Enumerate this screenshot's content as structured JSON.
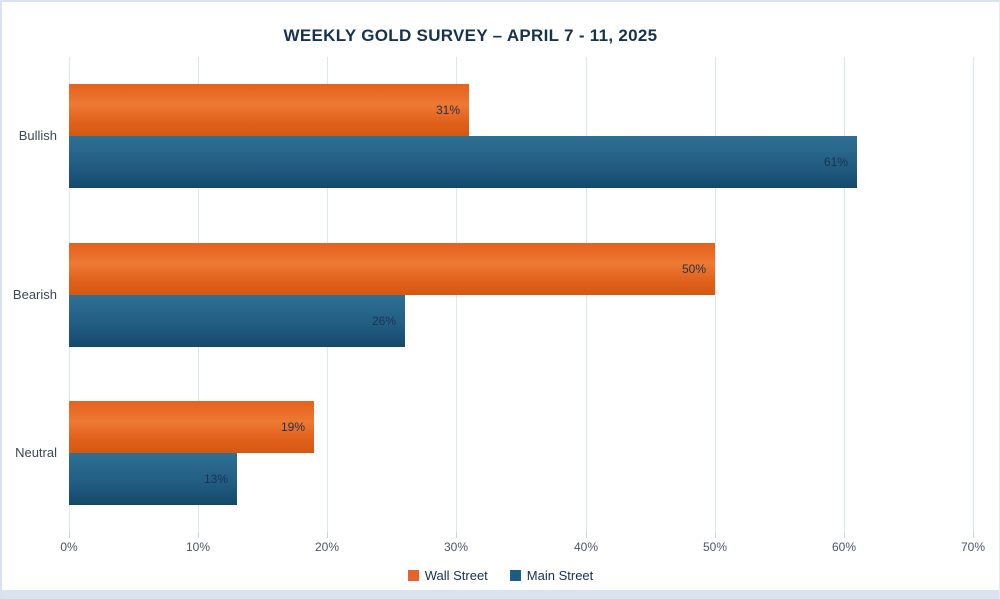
{
  "title": "WEEKLY GOLD SURVEY – APRIL 7 - 11, 2025",
  "colors": {
    "title_text": "#16324f",
    "wall_street": "#e8622b",
    "main_street": "#1d5d83",
    "gridline": "#dce6f0",
    "axis_label_text": "#4b5563",
    "category_label_text": "#3c4754",
    "value_label_text": "#1c3250",
    "card_border": "#d9e2f1"
  },
  "chart_data": {
    "type": "bar",
    "orientation": "horizontal",
    "title": "WEEKLY GOLD SURVEY – APRIL 7 - 11, 2025",
    "categories": [
      "Bullish",
      "Bearish",
      "Neutral"
    ],
    "series": [
      {
        "name": "Wall Street",
        "color": "#e8622b",
        "values": [
          31,
          50,
          19
        ],
        "labels": [
          "31%",
          "50%",
          "19%"
        ]
      },
      {
        "name": "Main Street",
        "color": "#1d5d83",
        "values": [
          61,
          26,
          13
        ],
        "labels": [
          "61%",
          "26%",
          "13%"
        ]
      }
    ],
    "xlabel": "",
    "ylabel": "",
    "xlim": [
      0,
      70
    ],
    "x_ticks": [
      "0%",
      "10%",
      "20%",
      "30%",
      "40%",
      "50%",
      "60%",
      "70%"
    ],
    "x_tick_values": [
      0,
      10,
      20,
      30,
      40,
      50,
      60,
      70
    ],
    "grid": "vertical",
    "legend_position": "bottom"
  },
  "legend": {
    "items": [
      {
        "label": "Wall Street",
        "color": "#e8622b"
      },
      {
        "label": "Main Street",
        "color": "#1d5d83"
      }
    ]
  }
}
